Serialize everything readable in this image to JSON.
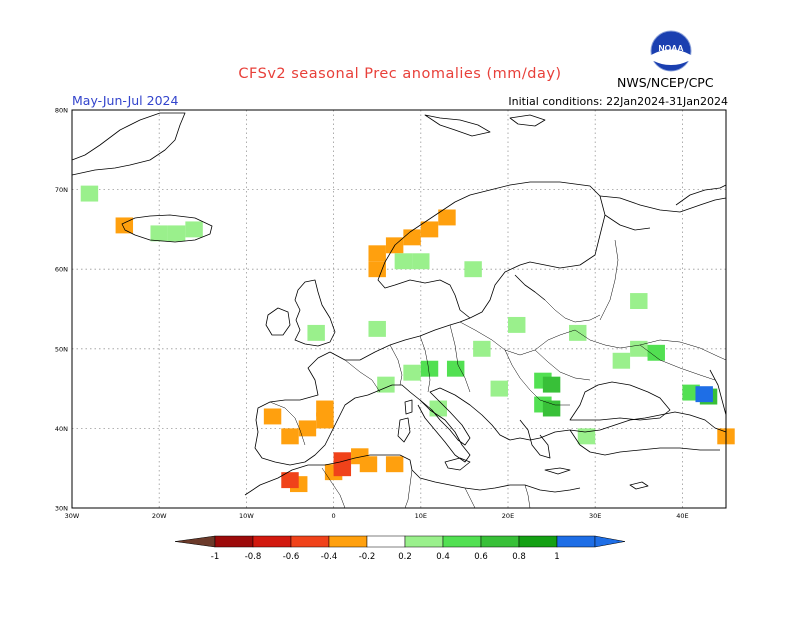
{
  "header": {
    "title": "CFSv2 seasonal Prec anomalies (mm/day)",
    "region_period": "May-Jun-Jul 2024",
    "initial_conditions": "Initial conditions: 22Jan2024-31Jan2024",
    "agency": "NWS/NCEP/CPC",
    "logo_text": "NOAA"
  },
  "map": {
    "lon_range": [
      -30,
      45
    ],
    "lat_range": [
      30,
      80
    ],
    "lat_labels": [
      "80N",
      "70N",
      "60N",
      "50N",
      "40N",
      "30N"
    ],
    "lon_labels": [
      "30W",
      "20W",
      "10W",
      "0",
      "10E",
      "20E",
      "30E",
      "40E"
    ],
    "anomalies": [
      {
        "lon": -28,
        "lat": 69.5,
        "v": 0.3
      },
      {
        "lon": -24,
        "lat": 65.5,
        "v": -0.3
      },
      {
        "lon": -20,
        "lat": 64.5,
        "v": 0.3
      },
      {
        "lon": -18,
        "lat": 64.5,
        "v": 0.3
      },
      {
        "lon": -16,
        "lat": 65,
        "v": 0.3
      },
      {
        "lon": 13,
        "lat": 66.5,
        "v": -0.3
      },
      {
        "lon": 11,
        "lat": 65,
        "v": -0.3
      },
      {
        "lon": 9,
        "lat": 64,
        "v": -0.3
      },
      {
        "lon": 7,
        "lat": 63,
        "v": -0.3
      },
      {
        "lon": 5,
        "lat": 62,
        "v": -0.3
      },
      {
        "lon": 5,
        "lat": 60,
        "v": -0.3
      },
      {
        "lon": 8,
        "lat": 61,
        "v": 0.3
      },
      {
        "lon": 10,
        "lat": 61,
        "v": 0.3
      },
      {
        "lon": 16,
        "lat": 60,
        "v": 0.3
      },
      {
        "lon": 35,
        "lat": 56,
        "v": 0.3
      },
      {
        "lon": -2,
        "lat": 52,
        "v": 0.3
      },
      {
        "lon": 5,
        "lat": 52.5,
        "v": 0.3
      },
      {
        "lon": 21,
        "lat": 53,
        "v": 0.3
      },
      {
        "lon": 28,
        "lat": 52,
        "v": 0.3
      },
      {
        "lon": 35,
        "lat": 50,
        "v": 0.3
      },
      {
        "lon": 37,
        "lat": 49.5,
        "v": 0.5
      },
      {
        "lon": 33,
        "lat": 48.5,
        "v": 0.3
      },
      {
        "lon": 11,
        "lat": 47.5,
        "v": 0.5
      },
      {
        "lon": 9,
        "lat": 47,
        "v": 0.3
      },
      {
        "lon": 14,
        "lat": 47.5,
        "v": 0.5
      },
      {
        "lon": 6,
        "lat": 45.5,
        "v": 0.3
      },
      {
        "lon": 17,
        "lat": 50,
        "v": 0.3
      },
      {
        "lon": 19,
        "lat": 45,
        "v": 0.3
      },
      {
        "lon": 24,
        "lat": 46,
        "v": 0.5
      },
      {
        "lon": 25,
        "lat": 45.5,
        "v": 0.7
      },
      {
        "lon": 24,
        "lat": 43,
        "v": 0.5
      },
      {
        "lon": 25,
        "lat": 42.5,
        "v": 0.7
      },
      {
        "lon": 12,
        "lat": 42.5,
        "v": 0.3
      },
      {
        "lon": 29,
        "lat": 39,
        "v": 0.3
      },
      {
        "lon": 41,
        "lat": 44.5,
        "v": 0.5
      },
      {
        "lon": 43,
        "lat": 44,
        "v": 0.7
      },
      {
        "lon": 42.5,
        "lat": 44.3,
        "v": 1.1
      },
      {
        "lon": 45,
        "lat": 39,
        "v": -0.3
      },
      {
        "lon": -3,
        "lat": 40,
        "v": -0.3
      },
      {
        "lon": -1,
        "lat": 41,
        "v": -0.3
      },
      {
        "lon": -5,
        "lat": 39,
        "v": -0.3
      },
      {
        "lon": -7,
        "lat": 41.5,
        "v": -0.3
      },
      {
        "lon": -1,
        "lat": 42.5,
        "v": -0.3
      },
      {
        "lon": -4,
        "lat": 33,
        "v": -0.3
      },
      {
        "lon": -5,
        "lat": 33.5,
        "v": -0.5
      },
      {
        "lon": 0,
        "lat": 34.5,
        "v": -0.3
      },
      {
        "lon": 1,
        "lat": 35,
        "v": -0.5
      },
      {
        "lon": 4,
        "lat": 35.5,
        "v": -0.3
      },
      {
        "lon": 7,
        "lat": 35.5,
        "v": -0.3
      },
      {
        "lon": 1,
        "lat": 36,
        "v": -0.5
      },
      {
        "lon": 3,
        "lat": 36.5,
        "v": -0.3
      }
    ]
  },
  "colorbar": {
    "tick_labels": [
      "-1",
      "-0.8",
      "-0.6",
      "-0.4",
      "-0.2",
      "0.2",
      "0.4",
      "0.6",
      "0.8",
      "1"
    ],
    "colors": [
      "#6b3a2a",
      "#9c0a0a",
      "#d2190f",
      "#f0421a",
      "#ffa00e",
      "#ffffff",
      "#9af08c",
      "#52e052",
      "#38c038",
      "#14a014",
      "#1e6ee6"
    ]
  }
}
